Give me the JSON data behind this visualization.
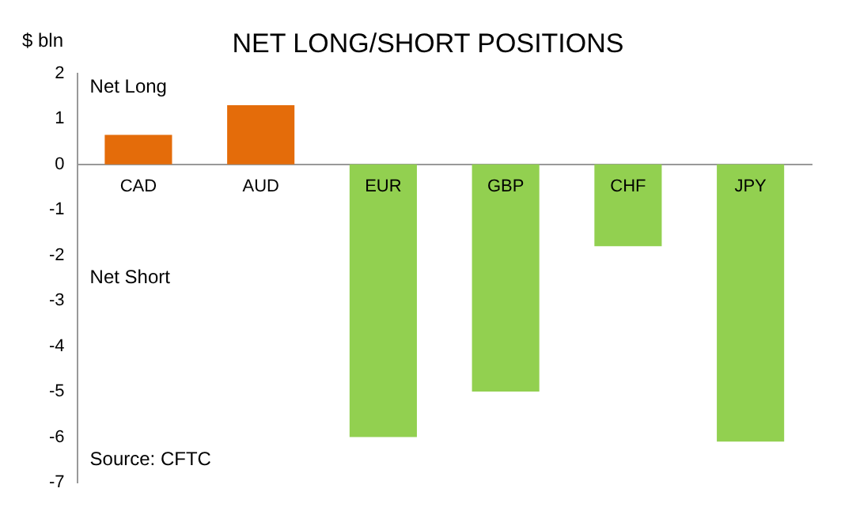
{
  "chart_data": {
    "type": "bar",
    "title": "NET LONG/SHORT POSITIONS",
    "ylabel": "$ bln",
    "categories": [
      "CAD",
      "AUD",
      "EUR",
      "GBP",
      "CHF",
      "JPY"
    ],
    "values": [
      0.65,
      1.3,
      -6.0,
      -5.0,
      -1.8,
      -6.1
    ],
    "colors": [
      "#e46c0a",
      "#e46c0a",
      "#92d050",
      "#92d050",
      "#92d050",
      "#92d050"
    ],
    "ylim": [
      -7,
      2
    ],
    "yticks": [
      -7,
      -6,
      -5,
      -4,
      -3,
      -2,
      -1,
      0,
      1,
      2
    ],
    "grid": false,
    "legend": false,
    "annotations": [
      "Net Long",
      "Net Short",
      "Source: CFTC"
    ]
  }
}
